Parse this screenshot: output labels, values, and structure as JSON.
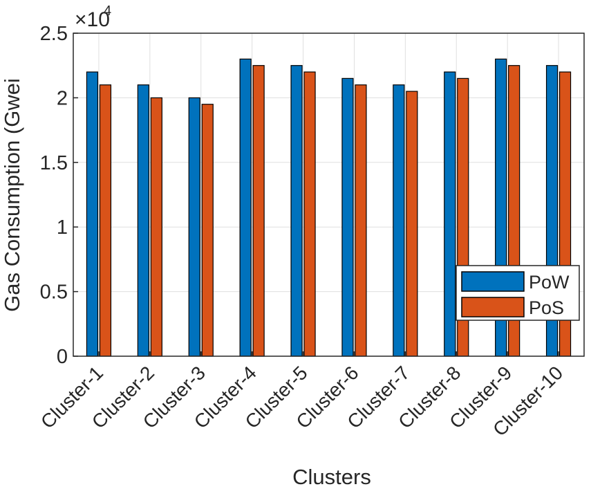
{
  "chart_data": {
    "type": "bar",
    "xlabel": "Clusters",
    "ylabel": "Gas Consumption (Gwei",
    "exponent_label": "×10",
    "exponent_power": "4",
    "ylim": [
      0,
      25000
    ],
    "yticks": [
      0,
      5000,
      10000,
      15000,
      20000,
      25000
    ],
    "ytick_labels": [
      "0",
      "0.5",
      "1",
      "1.5",
      "2",
      "2.5"
    ],
    "grid": true,
    "legend_position": "bottom-right",
    "categories": [
      "Cluster-1",
      "Cluster-2",
      "Cluster-3",
      "Cluster-4",
      "Cluster-5",
      "Cluster-6",
      "Cluster-7",
      "Cluster-8",
      "Cluster-9",
      "Cluster-10"
    ],
    "series": [
      {
        "name": "PoW",
        "color": "#0072BD",
        "values": [
          22000,
          21000,
          20000,
          23000,
          22500,
          21500,
          21000,
          22000,
          23000,
          22500
        ]
      },
      {
        "name": "PoS",
        "color": "#D95319",
        "values": [
          21000,
          20000,
          19500,
          22500,
          22000,
          21000,
          20500,
          21500,
          22500,
          22000
        ]
      }
    ]
  }
}
